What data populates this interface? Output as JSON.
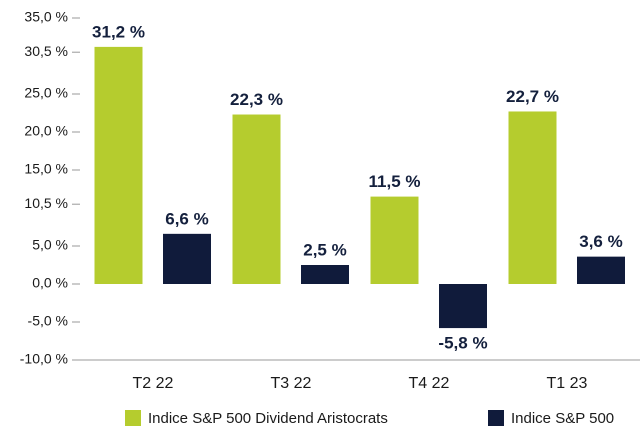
{
  "chart_data": {
    "type": "bar",
    "categories": [
      "T2 22",
      "T3 22",
      "T4 22",
      "T1 23"
    ],
    "series": [
      {
        "name": "Indice S&P 500 Dividend Aristocrats",
        "color": "#b5cc2e",
        "values": [
          31.2,
          22.3,
          11.5,
          22.7
        ],
        "value_labels": [
          "31,2 %",
          "22,3 %",
          "11,5 %",
          "22,7 %"
        ]
      },
      {
        "name": "Indice S&P 500",
        "color": "#101b3b",
        "values": [
          6.6,
          2.5,
          -5.8,
          3.6
        ],
        "value_labels": [
          "6,6 %",
          "2,5 %",
          "-5,8 %",
          "3,6 %"
        ]
      }
    ],
    "ylim": [
      -10,
      35
    ],
    "yticks": [
      {
        "value": 35,
        "label": "35,0 %"
      },
      {
        "value": 30.5,
        "label": "30,5 %"
      },
      {
        "value": 25,
        "label": "25,0 %"
      },
      {
        "value": 20,
        "label": "20,0 %"
      },
      {
        "value": 15,
        "label": "15,0 %"
      },
      {
        "value": 10.5,
        "label": "10,5 %"
      },
      {
        "value": 5,
        "label": "5,0 %"
      },
      {
        "value": 0,
        "label": "0,0 %"
      },
      {
        "value": -5,
        "label": "-5,0 %"
      },
      {
        "value": -10,
        "label": "-10,0 %"
      }
    ],
    "legend": "bottom"
  }
}
